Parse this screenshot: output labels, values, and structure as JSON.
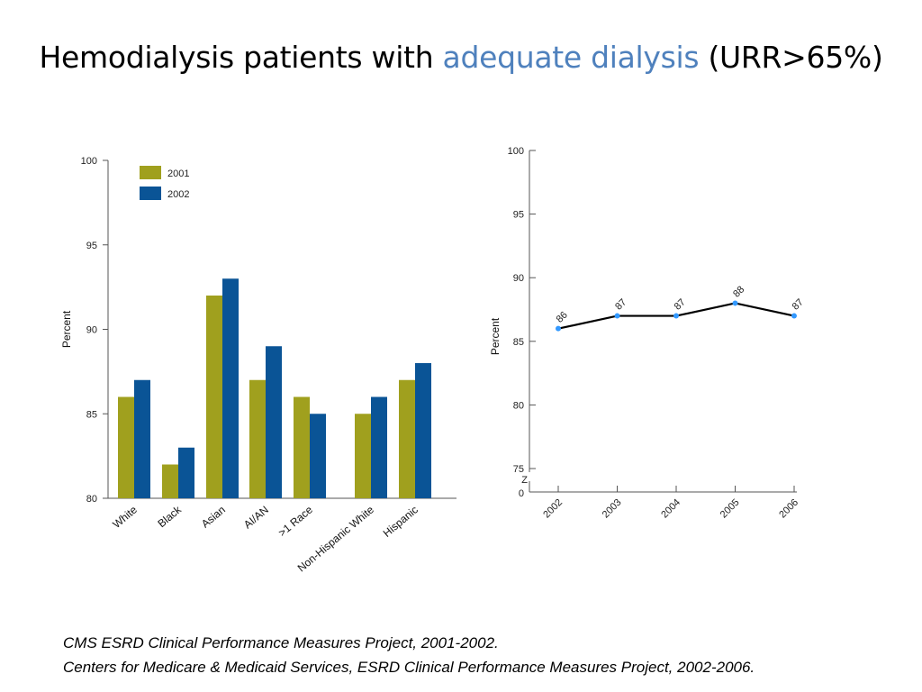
{
  "slide": {
    "title_part1": "Hemodialysis patients with ",
    "title_accent": "adequate dialysis",
    "title_part2": " (URR>65%)",
    "accent_color": "#4f81bd",
    "footer_line1": "CMS ESRD Clinical Performance Measures Project, 2001-2002.",
    "footer_line2": "Centers for Medicare & Medicaid Services, ESRD Clinical Performance Measures Project, 2002-2006."
  },
  "chart_data": [
    {
      "type": "bar",
      "categories": [
        "White",
        "Black",
        "Asian",
        "AI/AN",
        ">1 Race",
        "Non-Hispanic White",
        "Hispanic"
      ],
      "series": [
        {
          "name": "2001",
          "values": [
            86,
            82,
            92,
            87,
            86,
            85,
            87
          ],
          "color": "#a0a01e"
        },
        {
          "name": "2002",
          "values": [
            87,
            83,
            93,
            89,
            85,
            86,
            88
          ],
          "color": "#0a5496"
        }
      ],
      "title": "",
      "xlabel": "",
      "ylabel": "Percent",
      "ylim": [
        80,
        100
      ],
      "yticks": [
        80,
        85,
        90,
        95,
        100
      ],
      "legend": "top-left",
      "grid": false
    },
    {
      "type": "line",
      "x": [
        "2002",
        "2003",
        "2004",
        "2005",
        "2006"
      ],
      "series": [
        {
          "values": [
            86,
            87,
            87,
            88,
            87
          ],
          "line_color": "#000000",
          "marker_color": "#3399ff"
        }
      ],
      "data_labels": [
        "86",
        "87",
        "87",
        "88",
        "87"
      ],
      "title": "",
      "xlabel": "",
      "ylabel": "Percent",
      "ylim": [
        75,
        100
      ],
      "yticks": [
        "75",
        "80",
        "85",
        "90",
        "95",
        "100"
      ],
      "axis_break_label": "Z",
      "axis_zero_label": "0",
      "grid": false
    }
  ]
}
